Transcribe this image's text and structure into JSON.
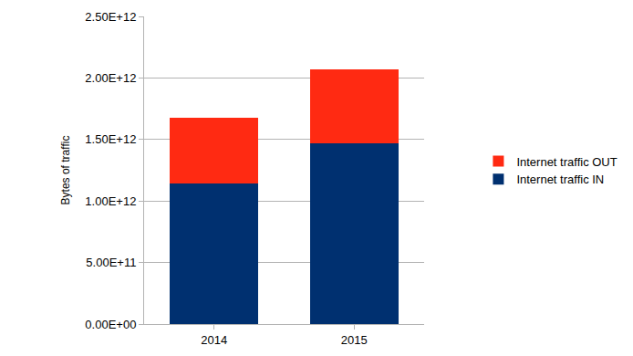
{
  "chart_data": {
    "type": "bar",
    "stacked": true,
    "y_label": "Bytes of traffic",
    "categories": [
      "2014",
      "2015"
    ],
    "series": [
      {
        "name": "Internet traffic IN",
        "color": "#003070",
        "values": [
          1140000000000,
          1470000000000
        ]
      },
      {
        "name": "Internet traffic OUT",
        "color": "#ff2a12",
        "values": [
          540000000000,
          600000000000
        ]
      }
    ],
    "ylim": [
      0,
      2500000000000
    ],
    "yticks": [
      {
        "value": 0,
        "label": "0.00E+00"
      },
      {
        "value": 500000000000,
        "label": "5.00E+11"
      },
      {
        "value": 1000000000000,
        "label": "1.00E+12"
      },
      {
        "value": 1500000000000,
        "label": "1.50E+12"
      },
      {
        "value": 2000000000000,
        "label": "2.00E+12"
      },
      {
        "value": 2500000000000,
        "label": "2.50E+12"
      }
    ],
    "grid": true,
    "legend": "right"
  }
}
